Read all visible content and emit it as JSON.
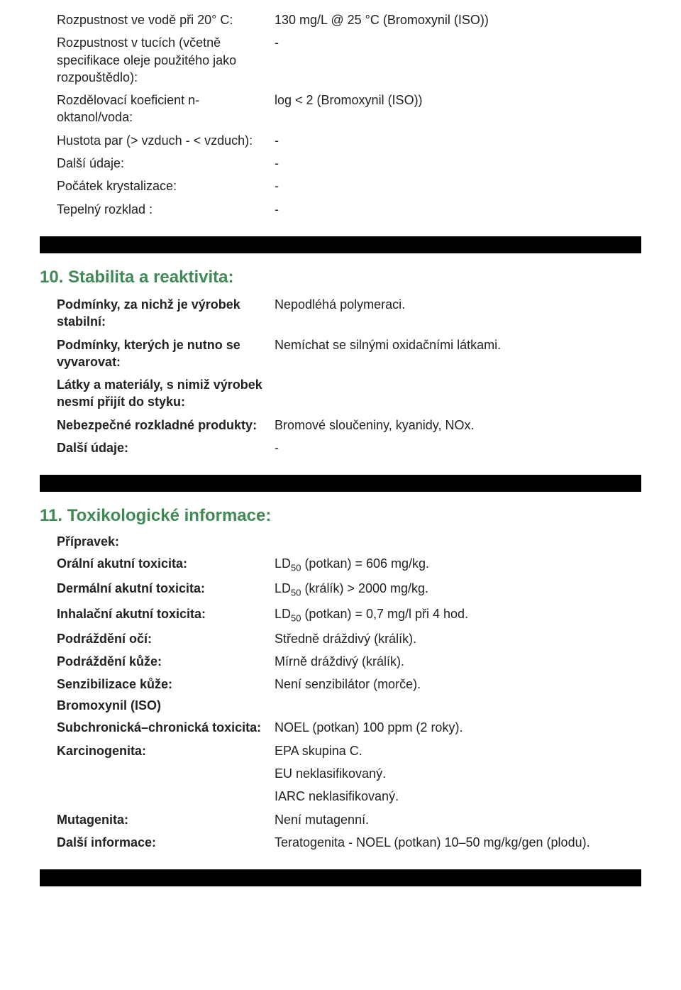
{
  "colors": {
    "text": "#222222",
    "heading": "#3f8a55",
    "rule": "#000000",
    "background": "#ffffff"
  },
  "typography": {
    "body_fontsize_pt": 14,
    "heading_fontsize_pt": 18,
    "font_family": "Verdana"
  },
  "section9_rows": [
    {
      "key": "Rozpustnost ve vodě při 20° C:",
      "val": "130 mg/L @ 25 °C (Bromoxynil (ISO))"
    },
    {
      "key": "Rozpustnost v tucích (včetně specifikace oleje použitého jako rozpouštědlo):",
      "val": "-"
    },
    {
      "key": "Rozdělovací koeficient n-oktanol/voda:",
      "val": "log < 2 (Bromoxynil (ISO))"
    },
    {
      "key": "Hustota par (> vzduch - < vzduch):",
      "val": "-"
    },
    {
      "key": "Další údaje:",
      "val": "-"
    },
    {
      "key": "Počátek krystalizace:",
      "val": "-"
    },
    {
      "key": "Tepelný rozklad :",
      "val": "-"
    }
  ],
  "section10": {
    "title": "10. Stabilita a reaktivita:",
    "rows": [
      {
        "key": "Podmínky, za nichž je výrobek stabilní:",
        "val": "Nepodléhá polymeraci."
      },
      {
        "key": "Podmínky, kterých je nutno se vyvarovat:",
        "val": "Nemíchat se silnými oxidačními látkami."
      },
      {
        "key": "Látky a materiály, s nimiž výrobek nesmí přijít do styku:",
        "val": ""
      },
      {
        "key": "Nebezpečné rozkladné produkty:",
        "val": "Bromové sloučeniny, kyanidy, NOx."
      },
      {
        "key": "Další údaje:",
        "val": "-"
      }
    ]
  },
  "section11": {
    "title": "11. Toxikologické informace:",
    "subhead1": "Přípravek:",
    "rows1": [
      {
        "key": "Orální akutní toxicita:",
        "val_pre": "LD",
        "val_sub": "50",
        "val_post": " (potkan) = 606 mg/kg."
      },
      {
        "key": "Dermální akutní toxicita:",
        "val_pre": "LD",
        "val_sub": "50",
        "val_post": " (králík) > 2000 mg/kg."
      },
      {
        "key": "Inhalační akutní toxicita:",
        "val_pre": "LD",
        "val_sub": "50",
        "val_post": " (potkan) = 0,7 mg/l při 4 hod."
      },
      {
        "key": "Podráždění očí:",
        "val": "Středně dráždivý (králík)."
      },
      {
        "key": "Podráždění kůže:",
        "val": "Mírně dráždivý (králík)."
      },
      {
        "key": "Senzibilizace kůže:",
        "val": "Není senzibilátor (morče)."
      }
    ],
    "subhead2": "Bromoxynil (ISO)",
    "rows2": [
      {
        "key": "Subchronická–chronická toxicita:",
        "val": "NOEL (potkan) 100 ppm (2 roky)."
      },
      {
        "key": "Karcinogenita:",
        "val": "EPA skupina C."
      },
      {
        "key": "",
        "val": "EU neklasifikovaný."
      },
      {
        "key": "",
        "val": "IARC neklasifikovaný."
      },
      {
        "key": "Mutagenita:",
        "val": "Není mutagenní."
      },
      {
        "key": "Další informace:",
        "val": "Teratogenita - NOEL (potkan) 10–50 mg/kg/gen (plodu)."
      }
    ]
  }
}
